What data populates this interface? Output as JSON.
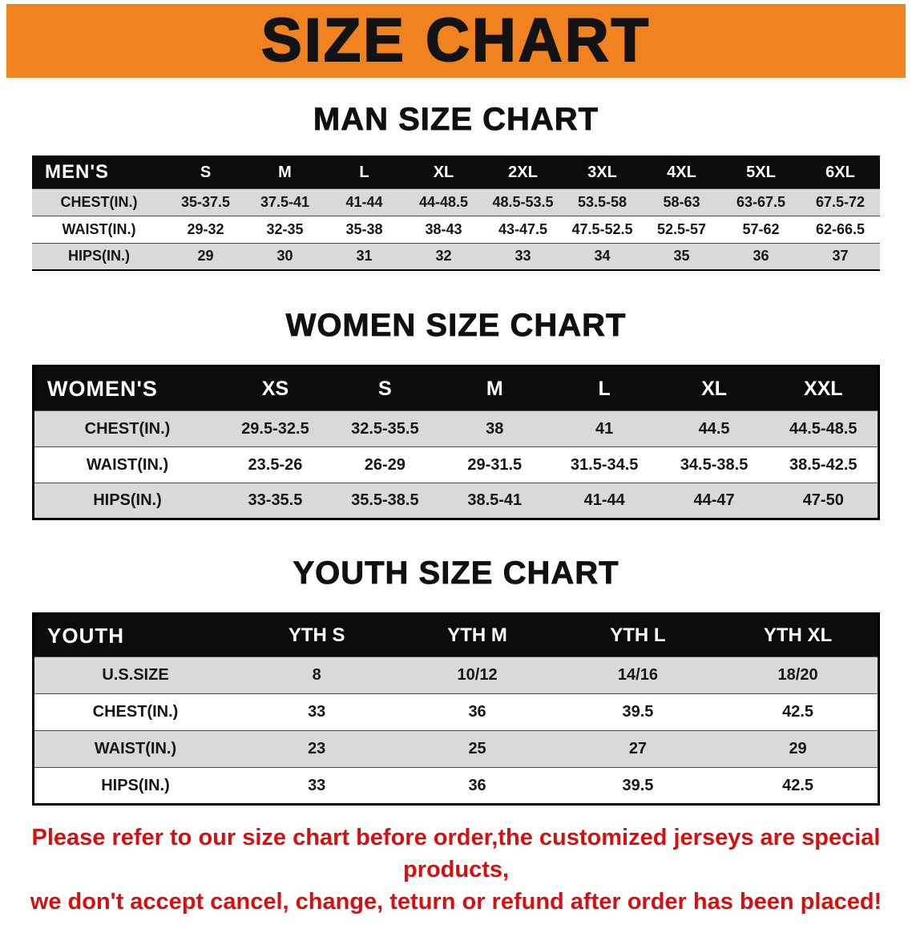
{
  "banner": {
    "title": "SIZE CHART",
    "bg_color": "#f0831f",
    "text_color": "#131313"
  },
  "colors": {
    "table_header_bg": "#0c0c0c",
    "row_stripe": "#d9d9d9",
    "disclaimer_red": "#d90f0f"
  },
  "sections": [
    {
      "heading": "MAN SIZE CHART",
      "table": {
        "header_label": "MEN'S",
        "columns": [
          "S",
          "M",
          "L",
          "XL",
          "2XL",
          "3XL",
          "4XL",
          "5XL",
          "6XL"
        ],
        "rows": [
          {
            "label": "CHEST(IN.)",
            "values": [
              "35-37.5",
              "37.5-41",
              "41-44",
              "44-48.5",
              "48.5-53.5",
              "53.5-58",
              "58-63",
              "63-67.5",
              "67.5-72"
            ]
          },
          {
            "label": "WAIST(IN.)",
            "values": [
              "29-32",
              "32-35",
              "35-38",
              "38-43",
              "43-47.5",
              "47.5-52.5",
              "52.5-57",
              "57-62",
              "62-66.5"
            ]
          },
          {
            "label": "HIPS(IN.)",
            "values": [
              "29",
              "30",
              "31",
              "32",
              "33",
              "34",
              "35",
              "36",
              "37"
            ]
          }
        ]
      }
    },
    {
      "heading": "WOMEN SIZE CHART",
      "table": {
        "header_label": "WOMEN'S",
        "columns": [
          "XS",
          "S",
          "M",
          "L",
          "XL",
          "XXL"
        ],
        "rows": [
          {
            "label": "CHEST(IN.)",
            "values": [
              "29.5-32.5",
              "32.5-35.5",
              "38",
              "41",
              "44.5",
              "44.5-48.5"
            ]
          },
          {
            "label": "WAIST(IN.)",
            "values": [
              "23.5-26",
              "26-29",
              "29-31.5",
              "31.5-34.5",
              "34.5-38.5",
              "38.5-42.5"
            ]
          },
          {
            "label": "HIPS(IN.)",
            "values": [
              "33-35.5",
              "35.5-38.5",
              "38.5-41",
              "41-44",
              "44-47",
              "47-50"
            ]
          }
        ]
      }
    },
    {
      "heading": "YOUTH SIZE CHART",
      "table": {
        "header_label": "YOUTH",
        "columns": [
          "YTH S",
          "YTH M",
          "YTH L",
          "YTH XL"
        ],
        "rows": [
          {
            "label": "U.S.SIZE",
            "values": [
              "8",
              "10/12",
              "14/16",
              "18/20"
            ]
          },
          {
            "label": "CHEST(IN.)",
            "values": [
              "33",
              "36",
              "39.5",
              "42.5"
            ]
          },
          {
            "label": "WAIST(IN.)",
            "values": [
              "23",
              "25",
              "27",
              "29"
            ]
          },
          {
            "label": "HIPS(IN.)",
            "values": [
              "33",
              "36",
              "39.5",
              "42.5"
            ]
          }
        ]
      }
    }
  ],
  "footer": {
    "line1": "Please refer to our size chart before order,the customized jerseys are special products,",
    "line2": "we don't accept cancel, change, teturn or refund after order has been placed!"
  }
}
